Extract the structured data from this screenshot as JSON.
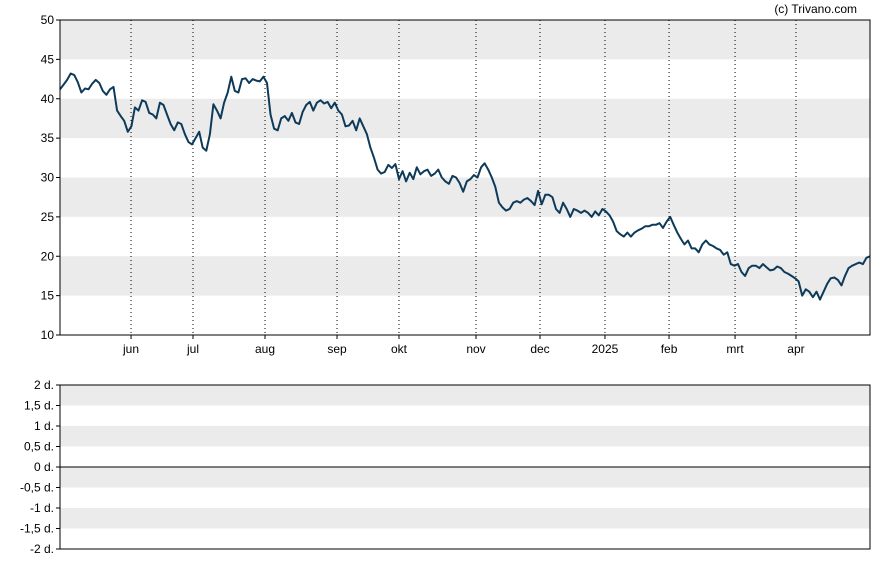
{
  "copyright": "(c) Trivano.com",
  "colors": {
    "line": "#0e3a5a",
    "band": "#ebebeb",
    "axis": "#000000",
    "grid": "#000000",
    "background": "#ffffff"
  },
  "chart_data": [
    {
      "type": "line",
      "title": "",
      "xlabel": "",
      "ylabel": "",
      "ylim": [
        10,
        50
      ],
      "yticks": [
        "10",
        "15",
        "20",
        "25",
        "30",
        "35",
        "40",
        "45",
        "50"
      ],
      "xticks": [
        "jun",
        "jul",
        "aug",
        "sep",
        "okt",
        "nov",
        "dec",
        "2025",
        "feb",
        "mrt",
        "apr"
      ],
      "grid": "vertical dotted at month starts, alternating horizontal bands",
      "series": [
        {
          "values": [
            41.2,
            41.8,
            42.4,
            43.2,
            43.0,
            42.1,
            40.8,
            41.3,
            41.2,
            41.9,
            42.4,
            42.0,
            41.0,
            40.5,
            41.2,
            41.5,
            38.5,
            37.8,
            37.2,
            35.8,
            36.5,
            38.9,
            38.5,
            39.8,
            39.6,
            38.2,
            38.0,
            37.5,
            39.5,
            39.2,
            38.0,
            36.8,
            36.0,
            37.0,
            36.8,
            35.5,
            34.5,
            34.2,
            35.0,
            35.8,
            33.8,
            33.4,
            35.5,
            39.3,
            38.5,
            37.5,
            39.5,
            40.8,
            42.8,
            41.0,
            40.8,
            42.5,
            42.6,
            42.0,
            42.5,
            42.3,
            42.2,
            42.8,
            42.0,
            38.0,
            36.2,
            36.0,
            37.5,
            37.8,
            37.2,
            38.2,
            37.0,
            36.8,
            38.3,
            39.2,
            39.6,
            38.5,
            39.5,
            39.8,
            39.4,
            39.6,
            38.8,
            39.5,
            38.5,
            38.0,
            36.5,
            36.6,
            37.2,
            36.0,
            37.5,
            36.5,
            35.5,
            33.8,
            32.5,
            31.0,
            30.5,
            30.7,
            31.6,
            31.2,
            31.7,
            29.8,
            30.8,
            29.5,
            30.6,
            29.8,
            31.3,
            30.4,
            30.8,
            31.0,
            30.2,
            30.5,
            31.0,
            30.0,
            29.5,
            29.2,
            30.2,
            30.0,
            29.3,
            28.2,
            29.5,
            29.8,
            30.3,
            30.0,
            31.3,
            31.8,
            31.0,
            30.0,
            28.8,
            26.8,
            26.2,
            25.8,
            26.0,
            26.8,
            27.0,
            26.8,
            27.2,
            27.4,
            27.0,
            26.5,
            28.3,
            26.6,
            27.8,
            27.8,
            27.5,
            26.0,
            25.5,
            26.8,
            26.0,
            25.0,
            26.0,
            25.8,
            25.5,
            25.8,
            25.5,
            25.0,
            25.7,
            25.2,
            26.0,
            25.7,
            25.2,
            24.4,
            23.2,
            22.8,
            22.5,
            23.0,
            22.5,
            23.0,
            23.3,
            23.5,
            23.8,
            23.8,
            24.0,
            24.0,
            24.2,
            23.6,
            24.4,
            25.0,
            24.0,
            23.0,
            22.2,
            21.5,
            22.0,
            21.0,
            21.0,
            20.5,
            21.5,
            22.0,
            21.5,
            21.3,
            21.0,
            20.8,
            20.2,
            20.5,
            19.0,
            18.8,
            19.0,
            18.0,
            17.5,
            18.5,
            18.8,
            18.8,
            18.5,
            19.0,
            18.6,
            18.2,
            18.3,
            18.7,
            18.5,
            18.0,
            17.8,
            17.5,
            17.2,
            16.8,
            15.0,
            15.8,
            15.5,
            14.8,
            15.5,
            14.5,
            15.5,
            16.5,
            17.2,
            17.3,
            17.0,
            16.3,
            17.5,
            18.5,
            18.8,
            19.0,
            19.2,
            19.0,
            19.8,
            20.0
          ]
        }
      ]
    },
    {
      "type": "line",
      "title": "",
      "xlabel": "",
      "ylabel": "",
      "ylim": [
        -2,
        2
      ],
      "yticks": [
        "2 d.",
        "1,5 d.",
        "1 d.",
        "0,5 d.",
        "0 d.",
        "-0,5 d.",
        "-1 d.",
        "-1,5 d.",
        "-2 d."
      ],
      "reference_line": 0,
      "series": []
    }
  ]
}
